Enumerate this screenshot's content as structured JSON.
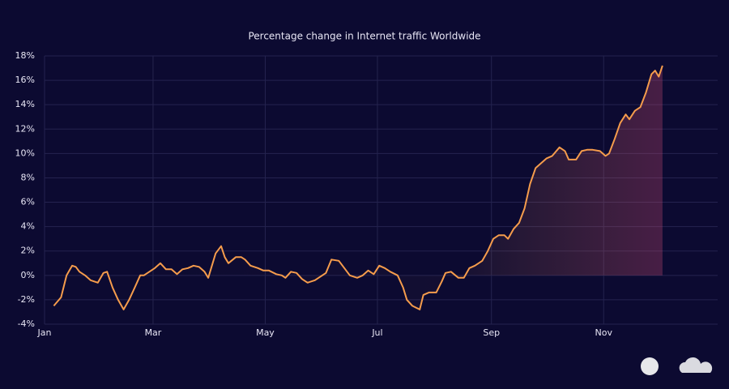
{
  "chart_data": {
    "type": "line",
    "title": "Percentage change in Internet traffic Worldwide",
    "x": [
      5,
      9,
      12,
      15,
      17,
      19,
      22,
      25,
      29,
      32,
      34,
      37,
      40,
      43,
      46,
      49,
      52,
      54,
      57,
      60,
      63,
      66,
      69,
      72,
      75,
      78,
      81,
      84,
      87,
      89,
      93,
      96,
      98,
      100,
      104,
      107,
      109,
      112,
      116,
      119,
      122,
      126,
      129,
      131,
      134,
      137,
      140,
      143,
      147,
      150,
      153,
      156,
      160,
      163,
      166,
      170,
      173,
      176,
      179,
      182,
      185,
      188,
      192,
      195,
      197,
      200,
      204,
      206,
      209,
      213,
      216,
      218,
      221,
      225,
      228,
      231,
      234,
      238,
      241,
      244,
      247,
      250,
      252,
      255,
      258,
      261,
      264,
      267,
      270,
      273,
      276,
      280,
      283,
      285,
      289,
      292,
      295,
      298,
      302,
      305,
      307,
      310,
      313,
      316,
      318,
      321,
      324,
      327,
      330,
      332,
      334,
      336
    ],
    "series": [
      {
        "name": "Worldwide",
        "color": "#f59c4c",
        "values": [
          -2.5,
          -1.8,
          0,
          0.8,
          0.7,
          0.3,
          0,
          -0.4,
          -0.6,
          0.2,
          0.3,
          -1,
          -2,
          -2.8,
          -2,
          -1,
          0,
          0,
          0.3,
          0.6,
          1,
          0.5,
          0.5,
          0.1,
          0.5,
          0.6,
          0.8,
          0.7,
          0.3,
          -0.2,
          1.8,
          2.4,
          1.5,
          1.0,
          1.5,
          1.5,
          1.3,
          0.8,
          0.6,
          0.4,
          0.4,
          0.1,
          0,
          -0.2,
          0.3,
          0.2,
          -0.3,
          -0.6,
          -0.4,
          -0.1,
          0.2,
          1.3,
          1.2,
          0.6,
          0,
          -0.2,
          0,
          0.4,
          0.1,
          0.8,
          0.6,
          0.3,
          0,
          -1,
          -2,
          -2.5,
          -2.8,
          -1.6,
          -1.4,
          -1.4,
          -0.5,
          0.2,
          0.3,
          -0.2,
          -0.2,
          0.6,
          0.8,
          1.2,
          2,
          3,
          3.3,
          3.3,
          3,
          3.8,
          4.3,
          5.5,
          7.5,
          8.8,
          9.2,
          9.6,
          9.8,
          10.5,
          10.2,
          9.5,
          9.5,
          10.2,
          10.3,
          10.3,
          10.2,
          9.8,
          10,
          11.2,
          12.5,
          13.2,
          12.8,
          13.5,
          13.8,
          15,
          16.5,
          16.8,
          16.3,
          17.2
        ]
      }
    ],
    "xlim": [
      0,
      366
    ],
    "xticks": [
      {
        "value": 0,
        "label": "Jan"
      },
      {
        "value": 59,
        "label": "Mar"
      },
      {
        "value": 120,
        "label": "May"
      },
      {
        "value": 181,
        "label": "Jul"
      },
      {
        "value": 243,
        "label": "Sep"
      },
      {
        "value": 304,
        "label": "Nov"
      }
    ],
    "ylim": [
      -4,
      18
    ],
    "yticks": [
      {
        "value": -4,
        "label": "-4%"
      },
      {
        "value": -2,
        "label": "-2%"
      },
      {
        "value": 0,
        "label": "0%"
      },
      {
        "value": 2,
        "label": "2%"
      },
      {
        "value": 4,
        "label": "4%"
      },
      {
        "value": 6,
        "label": "6%"
      },
      {
        "value": 8,
        "label": "8%"
      },
      {
        "value": 10,
        "label": "10%"
      },
      {
        "value": 12,
        "label": "12%"
      },
      {
        "value": 14,
        "label": "14%"
      },
      {
        "value": 16,
        "label": "16%"
      },
      {
        "value": 18,
        "label": "18%"
      }
    ],
    "grid": true
  }
}
